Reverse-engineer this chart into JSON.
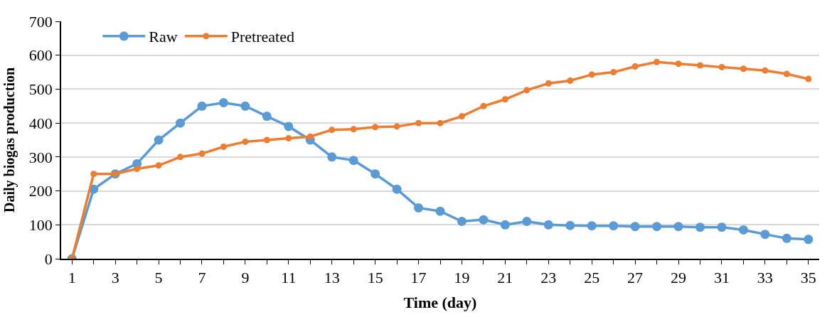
{
  "chart_data": {
    "type": "line",
    "xlabel": "Time (day)",
    "ylabel": "Daily biogas production",
    "x": [
      1,
      2,
      3,
      4,
      5,
      6,
      7,
      8,
      9,
      10,
      11,
      12,
      13,
      14,
      15,
      16,
      17,
      18,
      19,
      20,
      21,
      22,
      23,
      24,
      25,
      26,
      27,
      28,
      29,
      30,
      31,
      32,
      33,
      34,
      35
    ],
    "series": [
      {
        "name": "Raw",
        "color": "#5b9bd5",
        "values": [
          0,
          205,
          250,
          280,
          350,
          400,
          450,
          460,
          450,
          420,
          390,
          350,
          300,
          290,
          250,
          205,
          150,
          140,
          110,
          115,
          100,
          110,
          100,
          98,
          97,
          97,
          95,
          95,
          95,
          93,
          93,
          85,
          72,
          60,
          57
        ]
      },
      {
        "name": "Pretreated",
        "color": "#ed7d31",
        "values": [
          0,
          250,
          250,
          265,
          275,
          300,
          310,
          330,
          345,
          350,
          355,
          360,
          380,
          382,
          388,
          390,
          400,
          400,
          420,
          450,
          470,
          497,
          517,
          525,
          543,
          550,
          567,
          580,
          575,
          570,
          565,
          560,
          555,
          545,
          530
        ]
      }
    ],
    "xlim": [
      0.5,
      35.5
    ],
    "xticks": [
      1,
      {
        "value": 2,
        "label": null
      },
      3,
      {
        "value": 4,
        "label": null
      },
      5,
      {
        "value": 6,
        "label": null
      },
      7,
      {
        "value": 8,
        "label": null
      },
      9,
      {
        "value": 10,
        "label": null
      },
      11,
      {
        "value": 12,
        "label": null
      },
      13,
      {
        "value": 14,
        "label": null
      },
      15,
      {
        "value": 16,
        "label": null
      },
      17,
      {
        "value": 18,
        "label": null
      },
      19,
      {
        "value": 20,
        "label": null
      },
      21,
      {
        "value": 22,
        "label": null
      },
      23,
      {
        "value": 24,
        "label": null
      },
      25,
      {
        "value": 26,
        "label": null
      },
      27,
      {
        "value": 28,
        "label": null
      },
      29,
      {
        "value": 30,
        "label": null
      },
      31,
      {
        "value": 32,
        "label": null
      },
      33,
      {
        "value": 34,
        "label": null
      },
      35
    ],
    "ylim": [
      0,
      700
    ],
    "yticks": [
      0,
      100,
      200,
      300,
      400,
      500,
      600,
      700
    ],
    "grid": "y",
    "legend": "top left",
    "marker": "circle",
    "line_style": "solid"
  }
}
